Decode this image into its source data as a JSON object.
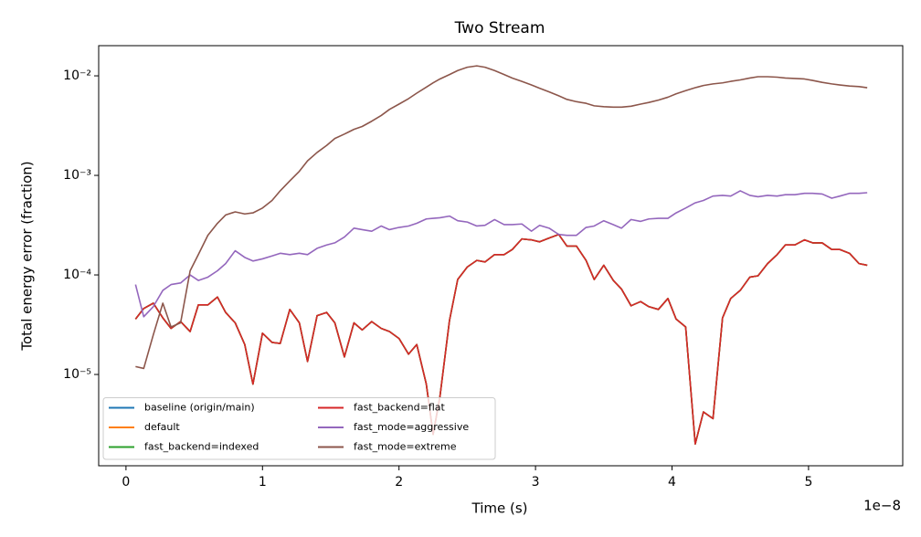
{
  "chart_data": {
    "type": "line",
    "title": "Two Stream",
    "xlabel": "Time (s)",
    "ylabel": "Total energy error (fraction)",
    "x_offset_label": "1e−8",
    "xlim": [
      -0.2,
      5.69
    ],
    "xticks": [
      0,
      1,
      2,
      3,
      4,
      5
    ],
    "ylim": [
      1.21e-06,
      0.0201
    ],
    "yscale": "log",
    "yticks": [
      {
        "value": 1e-05,
        "label": "10⁻⁵"
      },
      {
        "value": 0.0001,
        "label": "10⁻⁴"
      },
      {
        "value": 0.001,
        "label": "10⁻³"
      },
      {
        "value": 0.01,
        "label": "10⁻²"
      }
    ],
    "legend": "lower left",
    "grid": false,
    "x": [
      0.07,
      0.13,
      0.2,
      0.27,
      0.33,
      0.4,
      0.47,
      0.53,
      0.6,
      0.67,
      0.73,
      0.8,
      0.87,
      0.93,
      1.0,
      1.07,
      1.13,
      1.2,
      1.27,
      1.33,
      1.4,
      1.47,
      1.53,
      1.6,
      1.67,
      1.73,
      1.8,
      1.87,
      1.93,
      2.0,
      2.07,
      2.13,
      2.2,
      2.25,
      2.3,
      2.37,
      2.43,
      2.5,
      2.57,
      2.63,
      2.7,
      2.77,
      2.83,
      2.9,
      2.97,
      3.03,
      3.1,
      3.17,
      3.23,
      3.3,
      3.37,
      3.43,
      3.5,
      3.57,
      3.63,
      3.7,
      3.77,
      3.83,
      3.9,
      3.97,
      4.03,
      4.1,
      4.17,
      4.23,
      4.3,
      4.37,
      4.43,
      4.5,
      4.57,
      4.63,
      4.7,
      4.77,
      4.83,
      4.9,
      4.97,
      5.03,
      5.1,
      5.17,
      5.23,
      5.3,
      5.37,
      5.43
    ],
    "series": [
      {
        "name": "baseline (origin/main)",
        "color": "#1f77b4",
        "values": [
          3.6e-05,
          4.6e-05,
          5.2e-05,
          3.7e-05,
          2.9e-05,
          3.4e-05,
          2.7e-05,
          5e-05,
          5e-05,
          6e-05,
          4.2e-05,
          3.3e-05,
          2e-05,
          8e-06,
          2.6e-05,
          2.1e-05,
          2.05e-05,
          4.5e-05,
          3.3e-05,
          1.35e-05,
          3.9e-05,
          4.2e-05,
          3.3e-05,
          1.5e-05,
          3.3e-05,
          2.8e-05,
          3.4e-05,
          2.9e-05,
          2.7e-05,
          2.3e-05,
          1.6e-05,
          2e-05,
          8e-06,
          2.5e-06,
          6e-06,
          3.5e-05,
          9e-05,
          0.00012,
          0.00014,
          0.000135,
          0.00016,
          0.00016,
          0.00018,
          0.00023,
          0.000225,
          0.000215,
          0.000235,
          0.000255,
          0.000195,
          0.000195,
          0.00014,
          9e-05,
          0.000125,
          8.8e-05,
          7.2e-05,
          4.9e-05,
          5.4e-05,
          4.8e-05,
          4.5e-05,
          5.8e-05,
          3.6e-05,
          3e-05,
          2e-06,
          4.2e-06,
          3.6e-06,
          3.7e-05,
          5.8e-05,
          7e-05,
          9.5e-05,
          9.8e-05,
          0.00013,
          0.00016,
          0.0002,
          0.0002,
          0.000225,
          0.00021,
          0.00021,
          0.00018,
          0.00018,
          0.000165,
          0.00013,
          0.000125
        ]
      },
      {
        "name": "default",
        "color": "#ff7f0e",
        "values": [
          3.6e-05,
          4.6e-05,
          5.2e-05,
          3.7e-05,
          2.9e-05,
          3.4e-05,
          2.7e-05,
          5e-05,
          5e-05,
          6e-05,
          4.2e-05,
          3.3e-05,
          2e-05,
          8e-06,
          2.6e-05,
          2.1e-05,
          2.05e-05,
          4.5e-05,
          3.3e-05,
          1.35e-05,
          3.9e-05,
          4.2e-05,
          3.3e-05,
          1.5e-05,
          3.3e-05,
          2.8e-05,
          3.4e-05,
          2.9e-05,
          2.7e-05,
          2.3e-05,
          1.6e-05,
          2e-05,
          8e-06,
          2.5e-06,
          6e-06,
          3.5e-05,
          9e-05,
          0.00012,
          0.00014,
          0.000135,
          0.00016,
          0.00016,
          0.00018,
          0.00023,
          0.000225,
          0.000215,
          0.000235,
          0.000255,
          0.000195,
          0.000195,
          0.00014,
          9e-05,
          0.000125,
          8.8e-05,
          7.2e-05,
          4.9e-05,
          5.4e-05,
          4.8e-05,
          4.5e-05,
          5.8e-05,
          3.6e-05,
          3e-05,
          2e-06,
          4.2e-06,
          3.6e-06,
          3.7e-05,
          5.8e-05,
          7e-05,
          9.5e-05,
          9.8e-05,
          0.00013,
          0.00016,
          0.0002,
          0.0002,
          0.000225,
          0.00021,
          0.00021,
          0.00018,
          0.00018,
          0.000165,
          0.00013,
          0.000125
        ]
      },
      {
        "name": "fast_backend=indexed",
        "color": "#2ca02c",
        "values": [
          3.6e-05,
          4.6e-05,
          5.2e-05,
          3.7e-05,
          2.9e-05,
          3.4e-05,
          2.7e-05,
          5e-05,
          5e-05,
          6e-05,
          4.2e-05,
          3.3e-05,
          2e-05,
          8e-06,
          2.6e-05,
          2.1e-05,
          2.05e-05,
          4.5e-05,
          3.3e-05,
          1.35e-05,
          3.9e-05,
          4.2e-05,
          3.3e-05,
          1.5e-05,
          3.3e-05,
          2.8e-05,
          3.4e-05,
          2.9e-05,
          2.7e-05,
          2.3e-05,
          1.6e-05,
          2e-05,
          8e-06,
          2.5e-06,
          6e-06,
          3.5e-05,
          9e-05,
          0.00012,
          0.00014,
          0.000135,
          0.00016,
          0.00016,
          0.00018,
          0.00023,
          0.000225,
          0.000215,
          0.000235,
          0.000255,
          0.000195,
          0.000195,
          0.00014,
          9e-05,
          0.000125,
          8.8e-05,
          7.2e-05,
          4.9e-05,
          5.4e-05,
          4.8e-05,
          4.5e-05,
          5.8e-05,
          3.6e-05,
          3e-05,
          2e-06,
          4.2e-06,
          3.6e-06,
          3.7e-05,
          5.8e-05,
          7e-05,
          9.5e-05,
          9.8e-05,
          0.00013,
          0.00016,
          0.0002,
          0.0002,
          0.000225,
          0.00021,
          0.00021,
          0.00018,
          0.00018,
          0.000165,
          0.00013,
          0.000125
        ]
      },
      {
        "name": "fast_backend=flat",
        "color": "#d62728",
        "values": [
          3.6e-05,
          4.6e-05,
          5.2e-05,
          3.7e-05,
          2.9e-05,
          3.4e-05,
          2.7e-05,
          5e-05,
          5e-05,
          6e-05,
          4.2e-05,
          3.3e-05,
          2e-05,
          8e-06,
          2.6e-05,
          2.1e-05,
          2.05e-05,
          4.5e-05,
          3.3e-05,
          1.35e-05,
          3.9e-05,
          4.2e-05,
          3.3e-05,
          1.5e-05,
          3.3e-05,
          2.8e-05,
          3.4e-05,
          2.9e-05,
          2.7e-05,
          2.3e-05,
          1.6e-05,
          2e-05,
          8e-06,
          2.5e-06,
          6e-06,
          3.5e-05,
          9e-05,
          0.00012,
          0.00014,
          0.000135,
          0.00016,
          0.00016,
          0.00018,
          0.00023,
          0.000225,
          0.000215,
          0.000235,
          0.000255,
          0.000195,
          0.000195,
          0.00014,
          9e-05,
          0.000125,
          8.8e-05,
          7.2e-05,
          4.9e-05,
          5.4e-05,
          4.8e-05,
          4.5e-05,
          5.8e-05,
          3.6e-05,
          3e-05,
          2e-06,
          4.2e-06,
          3.6e-06,
          3.7e-05,
          5.8e-05,
          7e-05,
          9.5e-05,
          9.8e-05,
          0.00013,
          0.00016,
          0.0002,
          0.0002,
          0.000225,
          0.00021,
          0.00021,
          0.00018,
          0.00018,
          0.000165,
          0.00013,
          0.000125
        ]
      },
      {
        "name": "fast_mode=aggressive",
        "color": "#9467bd",
        "values": [
          8e-05,
          3.8e-05,
          4.8e-05,
          7e-05,
          8e-05,
          8.3e-05,
          0.0001,
          8.8e-05,
          9.5e-05,
          0.00011,
          0.00013,
          0.000175,
          0.00015,
          0.000138,
          0.000145,
          0.000155,
          0.000165,
          0.00016,
          0.000165,
          0.00016,
          0.000185,
          0.0002,
          0.00021,
          0.00024,
          0.000295,
          0.000285,
          0.000275,
          0.00031,
          0.000285,
          0.0003,
          0.00031,
          0.00033,
          0.000365,
          0.00037,
          0.000375,
          0.00039,
          0.00035,
          0.00034,
          0.00031,
          0.000315,
          0.00036,
          0.00032,
          0.00032,
          0.000325,
          0.000275,
          0.000315,
          0.000295,
          0.000255,
          0.00025,
          0.00025,
          0.0003,
          0.00031,
          0.00035,
          0.00032,
          0.000295,
          0.00036,
          0.000345,
          0.000365,
          0.00037,
          0.00037,
          0.00042,
          0.00047,
          0.00053,
          0.00056,
          0.00062,
          0.00063,
          0.00062,
          0.0007,
          0.00063,
          0.00061,
          0.00063,
          0.00062,
          0.00064,
          0.00064,
          0.00066,
          0.00066,
          0.00065,
          0.00059,
          0.00062,
          0.00066,
          0.00066,
          0.00067
        ]
      },
      {
        "name": "fast_mode=extreme",
        "color": "#8c564b",
        "values": [
          1.2e-05,
          1.15e-05,
          2.5e-05,
          5.2e-05,
          3e-05,
          3.3e-05,
          0.00011,
          0.00016,
          0.00025,
          0.00033,
          0.0004,
          0.00043,
          0.00041,
          0.00042,
          0.00047,
          0.00056,
          0.0007,
          0.00088,
          0.0011,
          0.0014,
          0.0017,
          0.002,
          0.00235,
          0.0026,
          0.0029,
          0.0031,
          0.0035,
          0.004,
          0.0046,
          0.0052,
          0.0059,
          0.0067,
          0.0077,
          0.0085,
          0.0093,
          0.0103,
          0.0113,
          0.0122,
          0.0126,
          0.0122,
          0.0113,
          0.0103,
          0.0095,
          0.0088,
          0.0081,
          0.0075,
          0.0069,
          0.0063,
          0.0058,
          0.0055,
          0.0053,
          0.005,
          0.0049,
          0.00485,
          0.00485,
          0.00495,
          0.0052,
          0.0054,
          0.0057,
          0.0061,
          0.0066,
          0.0071,
          0.0076,
          0.008,
          0.0083,
          0.0085,
          0.0088,
          0.0091,
          0.0095,
          0.0098,
          0.0098,
          0.0097,
          0.0095,
          0.0094,
          0.0093,
          0.009,
          0.0086,
          0.0083,
          0.0081,
          0.0079,
          0.0078,
          0.0076
        ]
      }
    ]
  }
}
